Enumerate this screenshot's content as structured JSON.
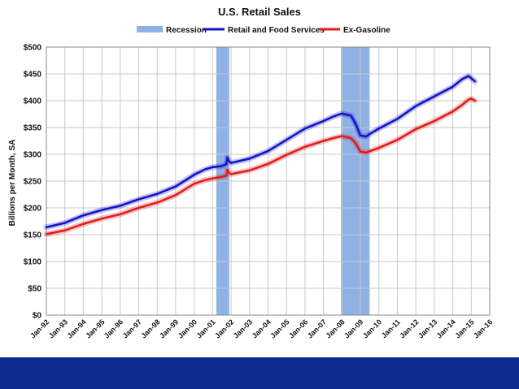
{
  "chart_data": {
    "type": "line",
    "title": "U.S. Retail Sales",
    "ylabel": "Billions per Month, SA",
    "xlabel": "",
    "ylim": [
      0,
      500
    ],
    "xlim": [
      1992.0,
      2016.0
    ],
    "y_ticks": [
      "$0",
      "$50",
      "$100",
      "$150",
      "$200",
      "$250",
      "$300",
      "$350",
      "$400",
      "$450",
      "$500"
    ],
    "y_tick_values": [
      0,
      50,
      100,
      150,
      200,
      250,
      300,
      350,
      400,
      450,
      500
    ],
    "x_ticks": [
      "Jan-92",
      "Jan-93",
      "Jan-94",
      "Jan-95",
      "Jan-96",
      "Jan-97",
      "Jan-98",
      "Jan-99",
      "Jan-00",
      "Jan-01",
      "Jan-02",
      "Jan-03",
      "Jan-04",
      "Jan-05",
      "Jan-06",
      "Jan-07",
      "Jan-08",
      "Jan-09",
      "Jan-10",
      "Jan-11",
      "Jan-12",
      "Jan-13",
      "Jan-14",
      "Jan-15",
      "Jan-16"
    ],
    "grid": true,
    "legend_placement": "top-center",
    "legend": [
      {
        "label": "Recession",
        "kind": "band",
        "color": "#8fb1e6"
      },
      {
        "label": "Retail and Food Services",
        "kind": "line",
        "color": "#1414c8"
      },
      {
        "label": "Ex-Gasoline",
        "kind": "line",
        "color": "#e01e1e"
      }
    ],
    "recessions": [
      {
        "start": 2001.2,
        "end": 2001.9
      },
      {
        "start": 2007.95,
        "end": 2009.5
      }
    ],
    "series": [
      {
        "name": "Retail and Food Services",
        "color": "#1414c8",
        "points": [
          [
            1992.0,
            164
          ],
          [
            1993.0,
            172
          ],
          [
            1994.0,
            186
          ],
          [
            1995.0,
            196
          ],
          [
            1996.0,
            204
          ],
          [
            1997.0,
            216
          ],
          [
            1998.0,
            226
          ],
          [
            1999.0,
            240
          ],
          [
            2000.0,
            262
          ],
          [
            2000.6,
            272
          ],
          [
            2001.0,
            276
          ],
          [
            2001.5,
            278
          ],
          [
            2001.75,
            282
          ],
          [
            2001.8,
            294
          ],
          [
            2001.9,
            287
          ],
          [
            2002.0,
            284
          ],
          [
            2003.0,
            292
          ],
          [
            2004.0,
            306
          ],
          [
            2005.0,
            327
          ],
          [
            2006.0,
            348
          ],
          [
            2007.0,
            362
          ],
          [
            2007.5,
            370
          ],
          [
            2008.0,
            376
          ],
          [
            2008.5,
            372
          ],
          [
            2008.75,
            356
          ],
          [
            2009.0,
            335
          ],
          [
            2009.3,
            333
          ],
          [
            2009.6,
            340
          ],
          [
            2010.0,
            348
          ],
          [
            2011.0,
            366
          ],
          [
            2012.0,
            390
          ],
          [
            2013.0,
            408
          ],
          [
            2014.0,
            426
          ],
          [
            2014.5,
            440
          ],
          [
            2014.85,
            446
          ],
          [
            2015.0,
            442
          ],
          [
            2015.2,
            436
          ]
        ]
      },
      {
        "name": "Ex-Gasoline",
        "color": "#e01e1e",
        "points": [
          [
            1992.0,
            151
          ],
          [
            1993.0,
            158
          ],
          [
            1994.0,
            170
          ],
          [
            1995.0,
            180
          ],
          [
            1996.0,
            188
          ],
          [
            1997.0,
            200
          ],
          [
            1998.0,
            210
          ],
          [
            1999.0,
            224
          ],
          [
            2000.0,
            245
          ],
          [
            2000.6,
            252
          ],
          [
            2001.0,
            255
          ],
          [
            2001.5,
            258
          ],
          [
            2001.75,
            260
          ],
          [
            2001.8,
            271
          ],
          [
            2001.9,
            265
          ],
          [
            2002.0,
            263
          ],
          [
            2003.0,
            270
          ],
          [
            2004.0,
            282
          ],
          [
            2005.0,
            299
          ],
          [
            2006.0,
            314
          ],
          [
            2007.0,
            325
          ],
          [
            2007.5,
            330
          ],
          [
            2008.0,
            334
          ],
          [
            2008.5,
            330
          ],
          [
            2008.75,
            320
          ],
          [
            2009.0,
            305
          ],
          [
            2009.3,
            303
          ],
          [
            2009.6,
            307
          ],
          [
            2010.0,
            312
          ],
          [
            2011.0,
            327
          ],
          [
            2012.0,
            347
          ],
          [
            2013.0,
            362
          ],
          [
            2014.0,
            380
          ],
          [
            2014.5,
            392
          ],
          [
            2014.85,
            402
          ],
          [
            2015.0,
            404
          ],
          [
            2015.2,
            400
          ]
        ]
      }
    ]
  }
}
